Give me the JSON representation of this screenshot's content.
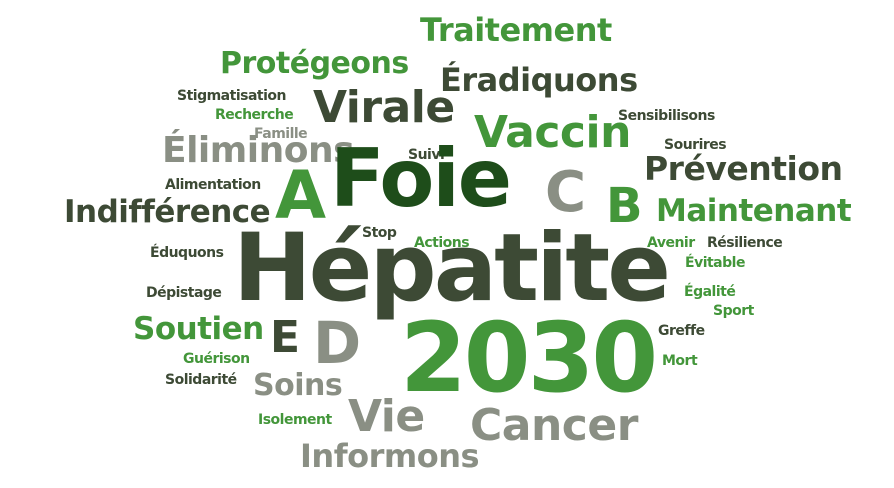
{
  "colors": {
    "dark": "#3d4a35",
    "darkest": "#1e4d1a",
    "green": "#43963a",
    "gray": "#8a8f84"
  },
  "words": {
    "hepatite": "Hépatite",
    "foie": "Foie",
    "y2030": "2030",
    "virale": "Virale",
    "vaccin": "Vaccin",
    "cancer": "Cancer",
    "vie": "Vie",
    "informons": "Informons",
    "traitement": "Traitement",
    "protegeons": "Protégeons",
    "eradiquons": "Éradiquons",
    "eliminons": "Éliminons",
    "prevention": "Prévention",
    "maintenant": "Maintenant",
    "indifference": "Indifférence",
    "soutien": "Soutien",
    "soins": "Soins",
    "a": "A",
    "b": "B",
    "c": "C",
    "d": "D",
    "e": "E",
    "stigmatisation": "Stigmatisation",
    "recherche": "Recherche",
    "famille": "Famille",
    "sensibilisons": "Sensibilisons",
    "sourires": "Sourires",
    "suivi": "Suivi",
    "alimentation": "Alimentation",
    "stop": "Stop",
    "actions": "Actions",
    "eduquons": "Éduquons",
    "depistage": "Dépistage",
    "guerison": "Guérison",
    "solidarite": "Solidarité",
    "isolement": "Isolement",
    "avenir": "Avenir",
    "resilience": "Résilience",
    "evitable": "Évitable",
    "egalite": "Égalité",
    "sport": "Sport",
    "greffe": "Greffe",
    "mort": "Mort"
  }
}
